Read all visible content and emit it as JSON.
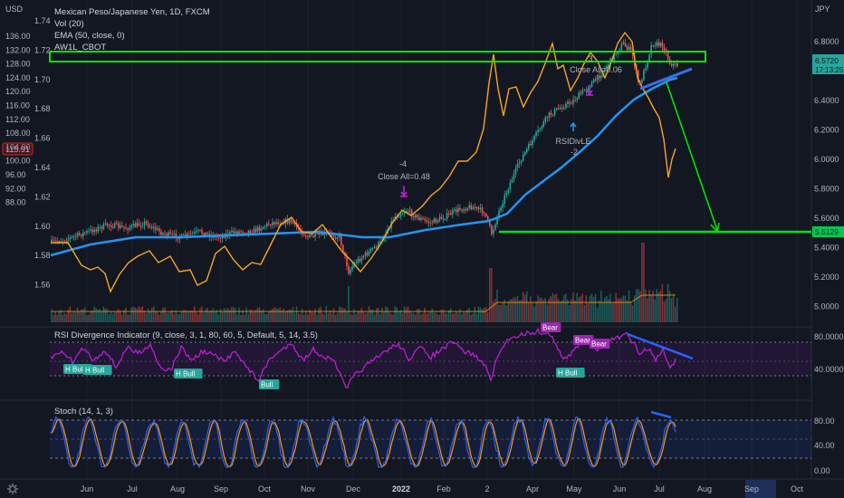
{
  "currency_left": "USD",
  "currency_right": "JPY",
  "legend": {
    "symbol": "Mexican Peso/Japanese Yen, 1D, FXCM",
    "vol": "Vol (20)",
    "ema": "EMA (50, close, 0)",
    "aw": "AW1L_CBOT"
  },
  "left_axis_outer": [
    "136.00",
    "132.00",
    "128.00",
    "124.00",
    "120.00",
    "116.00",
    "112.00",
    "108.00",
    "104.00",
    "100.00",
    "96.00",
    "92.00",
    "88.00"
  ],
  "left_axis_inner": [
    "1.74",
    "1.72",
    "1.70",
    "1.68",
    "1.66",
    "1.64",
    "1.62",
    "1.60",
    "1.58",
    "1.56"
  ],
  "right_axis": [
    "6.8000",
    "6.6000",
    "6.4000",
    "6.2000",
    "6.0000",
    "5.8000",
    "5.6000",
    "5.4000",
    "5.2000",
    "5.0000"
  ],
  "current_price": "6.5720",
  "countdown": "17:13:25",
  "support_label": "5.5129",
  "left_highlight": "115.91",
  "annotations": {
    "close_all_1": "Close All=0.48",
    "minus4": "-4",
    "close_all_2": "Close All=0.06",
    "three": "3",
    "rsidivle": "RSIDivLE",
    "minus2": "-2"
  },
  "rsi": {
    "title": "RSI Divergence Indicator (9, close, 3, 1, 80, 60, 5, Default, 5, 14, 3.5)",
    "axis": [
      "80.0000",
      "40.0000"
    ],
    "tags": [
      "H Bull",
      "H Bull",
      "H Bull",
      "Bull",
      "H Bull",
      "Bear",
      "Bear",
      "Bear"
    ]
  },
  "stoch": {
    "title": "Stoch (14, 1, 3)",
    "axis": [
      "80.00",
      "40.00",
      "0.00"
    ]
  },
  "time_axis": [
    "Jun",
    "Jul",
    "Aug",
    "Sep",
    "Oct",
    "Nov",
    "Dec",
    "2022",
    "Feb",
    "2",
    "Apr",
    "May",
    "Jun",
    "Jul",
    "Aug",
    "Sep",
    "Oct"
  ],
  "colors": {
    "background": "#131722",
    "grid": "#1e222d",
    "up": "#26a69a",
    "down": "#ef5350",
    "ema": "#2196f3",
    "orange": "#f5a623",
    "green": "#00e600",
    "purple": "#9c27b0",
    "stoch_k": "#2962ff",
    "stoch_d": "#ff9800"
  },
  "icons": [
    "gear-icon"
  ]
}
